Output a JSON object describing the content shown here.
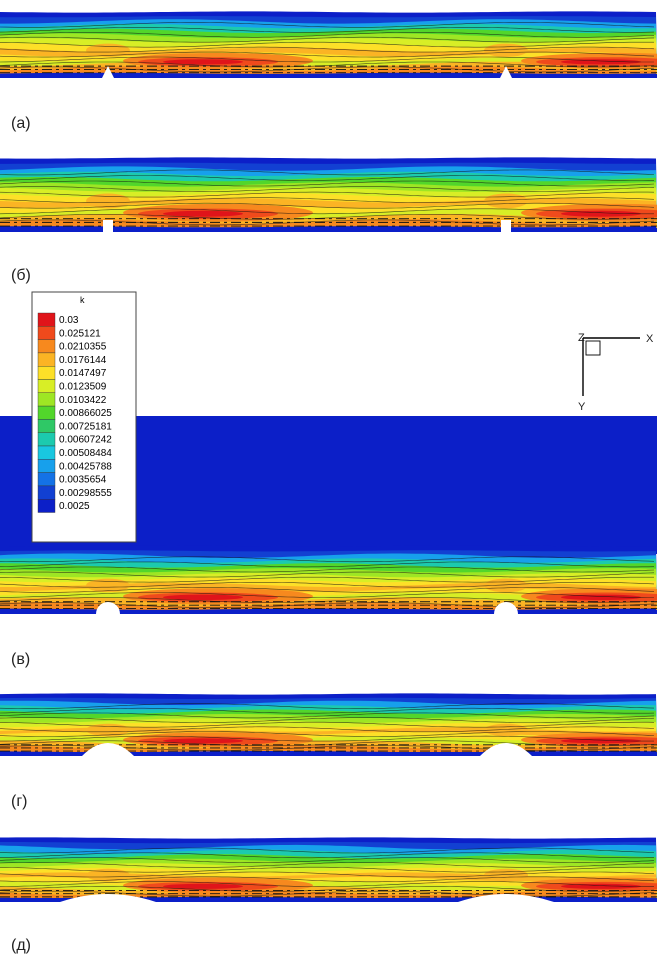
{
  "chart_data": {
    "type": "heatmap",
    "colorbar_label": "k",
    "panel_labels": [
      "(а)",
      "(б)",
      "(в)",
      "(г)",
      "(д)"
    ],
    "levels": [
      0.03,
      0.025121,
      0.0210355,
      0.0176144,
      0.0147497,
      0.0123509,
      0.0103422,
      0.00866025,
      0.00725181,
      0.00607242,
      0.00508484,
      0.00425788,
      0.0035654,
      0.00298555,
      0.0025
    ],
    "level_labels": [
      "0.03",
      "0.025121",
      "0.0210355",
      "0.0176144",
      "0.0147497",
      "0.0123509",
      "0.0103422",
      "0.00866025",
      "0.00725181",
      "0.00607242",
      "0.00508484",
      "0.00425788",
      "0.0035654",
      "0.00298555",
      "0.0025"
    ],
    "colors": [
      "#e0141a",
      "#f04a1c",
      "#f7891e",
      "#fbb424",
      "#fde028",
      "#d8ee26",
      "#9ee624",
      "#52d62b",
      "#2fc866",
      "#1ccaae",
      "#19c7e0",
      "#17a0ec",
      "#1472e6",
      "#1240d2",
      "#0c1fc8"
    ],
    "axis_labels": {
      "z": "Z",
      "x": "X",
      "y": "Y"
    },
    "obstacles": [
      "triangle",
      "rectangle",
      "semicircle",
      "arc",
      "shallow-arc"
    ]
  }
}
